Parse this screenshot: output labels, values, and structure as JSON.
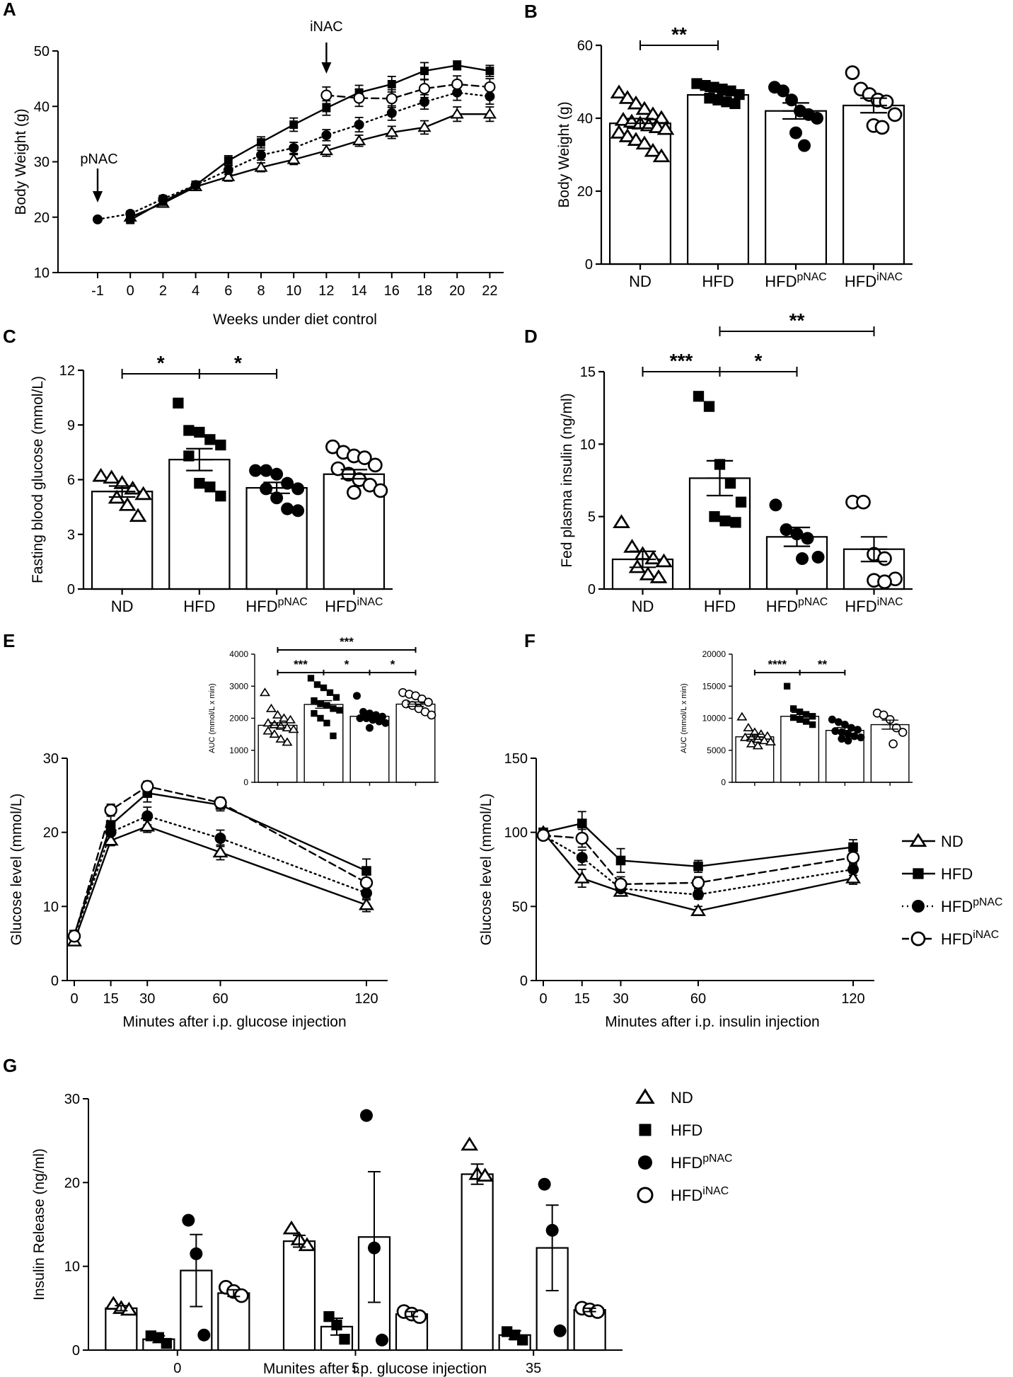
{
  "colors": {
    "ink": "#000000",
    "paper": "#ffffff"
  },
  "chart_data": [
    {
      "panel": "A",
      "type": "line",
      "xlabel": "Weeks under diet control",
      "ylabel": "Body Weight (g)",
      "ylim": [
        10,
        50
      ],
      "yticks": [
        10,
        20,
        30,
        40,
        50
      ],
      "x_tick_labels": [
        "-1",
        "0",
        "2",
        "4",
        "6",
        "8",
        "10",
        "12",
        "14",
        "16",
        "18",
        "20",
        "22"
      ],
      "annotations": [
        {
          "text": "pNAC",
          "at_x": "-1"
        },
        {
          "text": "iNAC",
          "at_x": "12"
        }
      ],
      "series": [
        {
          "name": "ND",
          "marker": "open-triangle",
          "line": "solid",
          "x": [
            "0",
            "2",
            "4",
            "6",
            "8",
            "10",
            "12",
            "14",
            "16",
            "18",
            "20",
            "22"
          ],
          "values": [
            20,
            22.5,
            25.5,
            27.3,
            29,
            30.4,
            32,
            33.8,
            35.3,
            36.2,
            38.6,
            38.6
          ],
          "err": [
            0.5,
            0.6,
            0.6,
            0.8,
            0.8,
            0.9,
            1,
            1,
            1.1,
            1.2,
            1.3,
            1.3
          ]
        },
        {
          "name": "HFD",
          "marker": "filled-square",
          "line": "solid",
          "x": [
            "0",
            "2",
            "4",
            "6",
            "8",
            "10",
            "12",
            "14",
            "16",
            "18",
            "20",
            "22"
          ],
          "values": [
            19.5,
            22.8,
            25.8,
            30.2,
            33.5,
            36.7,
            39.7,
            42.5,
            44,
            46.4,
            47.4,
            46.4
          ],
          "err": [
            0.5,
            0.6,
            0.7,
            0.9,
            1,
            1.2,
            1.3,
            1.3,
            1.4,
            1.5,
            0.8,
            1
          ]
        },
        {
          "name": "HFDpNAC",
          "marker": "filled-circle",
          "line": "dotted",
          "x": [
            "-1",
            "0",
            "2",
            "4",
            "6",
            "8",
            "10",
            "12",
            "14",
            "16",
            "18",
            "20",
            "22"
          ],
          "values": [
            19.6,
            20.6,
            23.3,
            25.8,
            28.5,
            31.2,
            32.5,
            34.8,
            36.7,
            38.8,
            40.8,
            42.5,
            41.8
          ],
          "err": [
            0.3,
            0.5,
            0.6,
            0.7,
            0.8,
            0.9,
            1,
            1,
            1.3,
            1.3,
            1.3,
            1.4,
            1.4
          ]
        },
        {
          "name": "HFDiNAC",
          "marker": "open-circle",
          "line": "dashed",
          "x": [
            "12",
            "14",
            "16",
            "18",
            "20",
            "22"
          ],
          "values": [
            42,
            41.5,
            41.4,
            43.2,
            44,
            43.5
          ],
          "err": [
            1.5,
            1.5,
            1.6,
            1.6,
            1.5,
            1.5
          ]
        }
      ]
    },
    {
      "panel": "B",
      "type": "bar",
      "ylabel": "Body Weight (g)",
      "ylim": [
        0,
        60
      ],
      "yticks": [
        0,
        20,
        40,
        60
      ],
      "categories": [
        {
          "base": "ND",
          "sup": ""
        },
        {
          "base": "HFD",
          "sup": ""
        },
        {
          "base": "HFD",
          "sup": "pNAC"
        },
        {
          "base": "HFD",
          "sup": "iNAC"
        }
      ],
      "values": [
        38.6,
        46.4,
        42,
        43.5
      ],
      "sem": [
        1.3,
        1,
        2.2,
        2
      ],
      "markers": [
        "open-triangle",
        "filled-square",
        "filled-circle",
        "open-circle"
      ],
      "points": [
        [
          47,
          45.5,
          44,
          42.5,
          41,
          40,
          39.5,
          39,
          38.5,
          38,
          37.5,
          37,
          36,
          35,
          34,
          33,
          31,
          29.5
        ],
        [
          49.5,
          49,
          48.5,
          48,
          47.5,
          46.5,
          45.5,
          45,
          44.5,
          44
        ],
        [
          48.5,
          47.5,
          45,
          42,
          41,
          40,
          36,
          32.5
        ],
        [
          52.5,
          48,
          46.5,
          45,
          44.5,
          41,
          38,
          37.5
        ]
      ],
      "significance": [
        {
          "from": 0,
          "to": 1,
          "label": "**"
        }
      ]
    },
    {
      "panel": "C",
      "type": "bar",
      "ylabel": "Fasting blood glucose (mmol/L)",
      "ylim": [
        0,
        12
      ],
      "yticks": [
        0,
        3,
        6,
        9,
        12
      ],
      "categories": [
        {
          "base": "ND",
          "sup": ""
        },
        {
          "base": "HFD",
          "sup": ""
        },
        {
          "base": "HFD",
          "sup": "pNAC"
        },
        {
          "base": "HFD",
          "sup": "iNAC"
        }
      ],
      "values": [
        5.35,
        7.1,
        5.55,
        6.3
      ],
      "sem": [
        0.3,
        0.6,
        0.3,
        0.25
      ],
      "markers": [
        "open-triangle",
        "filled-square",
        "filled-circle",
        "open-circle"
      ],
      "points": [
        [
          6.2,
          6.1,
          5.8,
          5.5,
          5.2,
          5.0,
          4.6,
          4.0
        ],
        [
          10.2,
          8.7,
          8.6,
          8.2,
          7.9,
          7.3,
          5.8,
          5.6,
          5.1
        ],
        [
          6.5,
          6.5,
          6.3,
          5.8,
          5.5,
          5.5,
          5.0,
          4.4,
          4.3
        ],
        [
          7.8,
          7.5,
          7.3,
          7.2,
          6.8,
          6.6,
          6.3,
          6.0,
          5.7,
          5.4,
          5.3
        ]
      ],
      "significance": [
        {
          "from": 0,
          "to": 1,
          "label": "*"
        },
        {
          "from": 1,
          "to": 2,
          "label": "*"
        }
      ]
    },
    {
      "panel": "D",
      "type": "bar",
      "ylabel": "Fed plasma insulin (ng/ml)",
      "ylim": [
        0,
        15
      ],
      "yticks": [
        0,
        5,
        10,
        15
      ],
      "categories": [
        {
          "base": "ND",
          "sup": ""
        },
        {
          "base": "HFD",
          "sup": ""
        },
        {
          "base": "HFD",
          "sup": "pNAC"
        },
        {
          "base": "HFD",
          "sup": "iNAC"
        }
      ],
      "values": [
        2.05,
        7.65,
        3.6,
        2.75
      ],
      "sem": [
        0.55,
        1.2,
        0.65,
        0.85
      ],
      "markers": [
        "open-triangle",
        "filled-square",
        "filled-circle",
        "open-circle"
      ],
      "points": [
        [
          4.6,
          2.9,
          2.4,
          2.1,
          1.9,
          1.5,
          1.0,
          0.8
        ],
        [
          13.3,
          12.6,
          8.6,
          7.3,
          6.0,
          5.0,
          4.7,
          4.6
        ],
        [
          5.8,
          4.1,
          3.8,
          3.5,
          2.2,
          2.1
        ],
        [
          6.0,
          6.0,
          2.4,
          2.1,
          0.7,
          0.6,
          0.5
        ]
      ],
      "significance": [
        {
          "from": 0,
          "to": 1,
          "label": "***"
        },
        {
          "from": 1,
          "to": 2,
          "label": "*"
        },
        {
          "from": 1,
          "to": 3,
          "label": "**"
        }
      ]
    },
    {
      "panel": "E",
      "type": "line",
      "xlabel": "Minutes after i.p. glucose injection",
      "ylabel": "Glucose level (mmol/L)",
      "x": [
        0,
        15,
        30,
        60,
        120
      ],
      "x_ticks": [
        0,
        15,
        30,
        60,
        120
      ],
      "ylim": [
        0,
        30
      ],
      "yticks": [
        0,
        10,
        20,
        30
      ],
      "series": [
        {
          "name": "ND",
          "marker": "open-triangle",
          "line": "solid",
          "values": [
            5.3,
            18.9,
            20.8,
            17.3,
            10.2
          ],
          "err": [
            0.3,
            0.7,
            0.8,
            1,
            0.9
          ]
        },
        {
          "name": "HFD",
          "marker": "filled-square",
          "line": "solid",
          "values": [
            6.2,
            21,
            25.3,
            23.7,
            14.8
          ],
          "err": [
            0.5,
            1.3,
            1.2,
            0.8,
            1.6
          ]
        },
        {
          "name": "HFDpNAC",
          "marker": "filled-circle",
          "line": "dotted",
          "values": [
            6,
            20,
            22.2,
            19.2,
            11.8
          ],
          "err": [
            0.4,
            1,
            1.2,
            1.1,
            0.9
          ]
        },
        {
          "name": "HFDiNAC",
          "marker": "open-circle",
          "line": "dashed",
          "values": [
            6,
            23,
            26.2,
            24,
            13.2
          ],
          "err": [
            0.4,
            0.8,
            0.7,
            0.7,
            1.1
          ]
        }
      ],
      "inset": {
        "type": "bar",
        "ylabel": "AUC (mmol/L x min)",
        "ylim": [
          0,
          4000
        ],
        "yticks": [
          0,
          1000,
          2000,
          3000,
          4000
        ],
        "values": [
          1780,
          2430,
          2060,
          2440
        ],
        "sem": [
          80,
          120,
          60,
          70
        ],
        "markers": [
          "open-triangle",
          "filled-square",
          "filled-circle",
          "open-circle"
        ],
        "points": [
          [
            2800,
            2300,
            2100,
            2000,
            1950,
            1850,
            1800,
            1750,
            1700,
            1650,
            1600,
            1500,
            1350,
            1250
          ],
          [
            3250,
            3050,
            2950,
            2800,
            2650,
            2550,
            2450,
            2400,
            2300,
            2250,
            2150,
            2000,
            1850,
            1450
          ],
          [
            2700,
            2200,
            2150,
            2100,
            2050,
            2000,
            2000,
            1950,
            1900,
            1850,
            1700
          ],
          [
            2800,
            2750,
            2700,
            2600,
            2500,
            2450,
            2400,
            2300,
            2200,
            2100
          ]
        ],
        "significance": [
          {
            "from": 0,
            "to": 1,
            "label": "***"
          },
          {
            "from": 1,
            "to": 2,
            "label": "*"
          },
          {
            "from": 2,
            "to": 3,
            "label": "*"
          },
          {
            "from": 0,
            "to": 3,
            "label": "***"
          }
        ]
      }
    },
    {
      "panel": "F",
      "type": "line",
      "xlabel": "Minutes after i.p. insulin injection",
      "ylabel": "Glucose level (mmol/L)",
      "x": [
        0,
        15,
        30,
        60,
        120
      ],
      "x_ticks": [
        0,
        15,
        30,
        60,
        120
      ],
      "ylim": [
        0,
        150
      ],
      "yticks": [
        0,
        50,
        100,
        150
      ],
      "series": [
        {
          "name": "ND",
          "marker": "open-triangle",
          "line": "solid",
          "values": [
            100,
            69,
            60,
            47,
            69
          ],
          "err": [
            2,
            6,
            3,
            3,
            4
          ]
        },
        {
          "name": "HFD",
          "marker": "filled-square",
          "line": "solid",
          "values": [
            100,
            106,
            81,
            77,
            90
          ],
          "err": [
            2,
            8,
            8,
            4,
            5
          ]
        },
        {
          "name": "HFDpNAC",
          "marker": "filled-circle",
          "line": "dotted",
          "values": [
            98,
            83,
            62,
            58,
            75
          ],
          "err": [
            2,
            5,
            4,
            3,
            4
          ]
        },
        {
          "name": "HFDiNAC",
          "marker": "open-circle",
          "line": "dashed",
          "values": [
            98,
            96,
            65,
            66,
            83
          ],
          "err": [
            2,
            6,
            5,
            4,
            5
          ]
        }
      ],
      "inset": {
        "type": "bar",
        "ylabel": "AUC (mmol/L x min)",
        "ylim": [
          0,
          20000
        ],
        "yticks": [
          0,
          5000,
          10000,
          15000,
          20000
        ],
        "values": [
          7100,
          10300,
          8100,
          9000
        ],
        "sem": [
          400,
          600,
          450,
          700
        ],
        "markers": [
          "open-triangle",
          "filled-square",
          "filled-circle",
          "open-circle"
        ],
        "points": [
          [
            10200,
            8500,
            7800,
            7500,
            7200,
            7000,
            6900,
            6700,
            6500,
            6300,
            6000,
            5700
          ],
          [
            15000,
            11500,
            11000,
            10600,
            10300,
            10100,
            9800,
            9500,
            9000
          ],
          [
            9800,
            9400,
            9000,
            8500,
            8200,
            8000,
            7800,
            7500,
            7200,
            7000,
            6800,
            6500
          ],
          [
            10800,
            10500,
            9800,
            8500,
            7800,
            6000
          ]
        ],
        "significance": [
          {
            "from": 0,
            "to": 1,
            "label": "****"
          },
          {
            "from": 1,
            "to": 2,
            "label": "**"
          }
        ]
      }
    },
    {
      "panel": "G",
      "type": "bar",
      "xlabel": "Munites after i.p. glucose injection",
      "ylabel": "Insulin Release (ng/ml)",
      "categories": [
        "0",
        "5",
        "35"
      ],
      "ylim": [
        0,
        30
      ],
      "yticks": [
        0,
        10,
        20,
        30
      ],
      "series": [
        {
          "name": "ND",
          "marker": "open-triangle",
          "values": [
            5,
            13,
            21
          ],
          "sem": [
            0.3,
            0.7,
            1.2
          ],
          "points": [
            [
              5.5,
              5.0,
              4.8
            ],
            [
              14.5,
              13.2,
              12.5
            ],
            [
              24.5,
              21,
              20.8
            ]
          ]
        },
        {
          "name": "HFD",
          "marker": "filled-square",
          "values": [
            1.3,
            2.8,
            1.8
          ],
          "sem": [
            0.4,
            1,
            0.5
          ],
          "points": [
            [
              1.7,
              1.5,
              0.8
            ],
            [
              4.0,
              3.0,
              1.3
            ],
            [
              2.2,
              1.8,
              1.2
            ]
          ]
        },
        {
          "name": "HFDpNAC",
          "marker": "filled-circle",
          "values": [
            9.5,
            13.5,
            12.2
          ],
          "sem": [
            4.3,
            7.8,
            5.1
          ],
          "points": [
            [
              15.5,
              11.5,
              1.8
            ],
            [
              28,
              12.2,
              1.2
            ],
            [
              19.8,
              14.3,
              2.3
            ]
          ]
        },
        {
          "name": "HFDiNAC",
          "marker": "open-circle",
          "values": [
            6.8,
            4.3,
            4.8
          ],
          "sem": [
            0.4,
            0.3,
            0.2
          ],
          "points": [
            [
              7.5,
              7.0,
              6.5
            ],
            [
              4.6,
              4.3,
              4.0
            ],
            [
              5.0,
              4.8,
              4.6
            ]
          ]
        }
      ]
    }
  ],
  "legend": [
    {
      "base": "ND",
      "sup": "",
      "marker": "open-triangle",
      "line": "solid"
    },
    {
      "base": "HFD",
      "sup": "",
      "marker": "filled-square",
      "line": "solid"
    },
    {
      "base": "HFD",
      "sup": "pNAC",
      "marker": "filled-circle",
      "line": "dotted"
    },
    {
      "base": "HFD",
      "sup": "iNAC",
      "marker": "open-circle",
      "line": "dashed"
    }
  ]
}
